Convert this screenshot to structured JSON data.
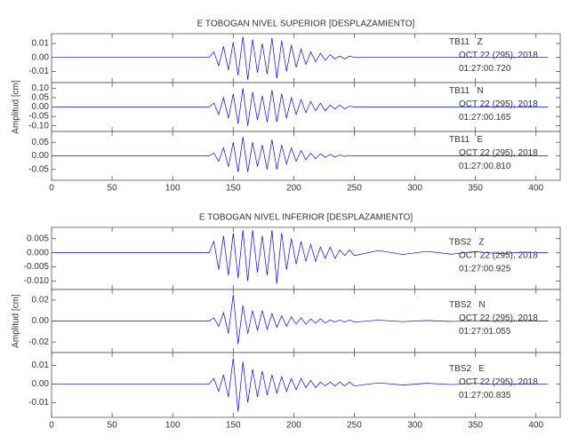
{
  "chart_data": [
    {
      "type": "line",
      "title": "E TOBOGAN NIVEL SUPERIOR [DESPLAZAMIENTO]",
      "station": "TB11   Z",
      "date": "OCT 22 (295), 2018",
      "time": "01:27:00.720",
      "xlim": [
        0,
        420
      ],
      "xticks": [
        0,
        50,
        100,
        150,
        200,
        250,
        300,
        350,
        400
      ],
      "show_xtick_labels": false,
      "ylim": [
        -0.018,
        0.017
      ],
      "yticks": [
        0.01,
        {
          "value": 0,
          "label": "0.00"
        },
        -0.01
      ],
      "color": "#0000ff",
      "x": [
        0,
        130,
        134,
        138,
        142,
        146,
        150,
        154,
        158,
        162,
        166,
        170,
        174,
        178,
        182,
        186,
        190,
        194,
        198,
        202,
        206,
        210,
        214,
        218,
        222,
        226,
        230,
        234,
        238,
        242,
        246,
        250,
        270,
        290,
        310,
        330,
        350,
        370,
        390,
        410
      ],
      "values": [
        0,
        0,
        0.004,
        -0.006,
        0.008,
        -0.009,
        0.011,
        -0.013,
        0.015,
        -0.016,
        0.013,
        -0.011,
        0.01,
        -0.012,
        0.014,
        -0.015,
        0.012,
        -0.01,
        0.009,
        -0.007,
        0.006,
        -0.005,
        0.004,
        -0.003,
        0.003,
        -0.002,
        0.002,
        -0.001,
        0.001,
        -0.001,
        0.001,
        0,
        0,
        0,
        0,
        0,
        0,
        0,
        0,
        0
      ]
    },
    {
      "type": "line",
      "ylabel": "Amplitud [cm]",
      "station": "TB11   N",
      "date": "OCT 22 (295), 2018",
      "time": "01:27:00.165",
      "xlim": [
        0,
        420
      ],
      "xticks": [
        0,
        50,
        100,
        150,
        200,
        250,
        300,
        350,
        400
      ],
      "show_xtick_labels": false,
      "ylim": [
        -0.13,
        0.13
      ],
      "yticks": [
        {
          "value": 0.1,
          "label": "0.10"
        },
        0.05,
        {
          "value": 0,
          "label": "0.00"
        },
        -0.05,
        {
          "value": -0.1,
          "label": "-0.10"
        }
      ],
      "color": "#0000ff",
      "x": [
        0,
        130,
        134,
        138,
        142,
        146,
        150,
        154,
        158,
        162,
        166,
        170,
        174,
        178,
        182,
        186,
        190,
        194,
        198,
        202,
        206,
        210,
        214,
        218,
        222,
        226,
        230,
        234,
        238,
        242,
        246,
        250,
        270,
        290,
        310,
        330,
        350,
        370,
        390,
        410
      ],
      "values": [
        0,
        0,
        0.02,
        -0.04,
        0.05,
        -0.06,
        0.07,
        -0.09,
        0.1,
        -0.1,
        0.08,
        -0.07,
        0.06,
        -0.08,
        0.09,
        -0.08,
        0.07,
        -0.06,
        0.05,
        -0.04,
        0.04,
        -0.03,
        0.03,
        -0.02,
        0.02,
        -0.02,
        0.01,
        -0.01,
        0.01,
        -0.01,
        0.005,
        0,
        0,
        0,
        0,
        0,
        0,
        0,
        0,
        0
      ]
    },
    {
      "type": "line",
      "station": "TB11   E",
      "date": "OCT 22 (295), 2018",
      "time": "01:27:00.810",
      "xlim": [
        0,
        420
      ],
      "xticks": [
        0,
        50,
        100,
        150,
        200,
        250,
        300,
        350,
        400
      ],
      "show_xtick_labels": true,
      "ylim": [
        -0.09,
        0.09
      ],
      "yticks": [
        0.05,
        {
          "value": 0,
          "label": "0.00"
        },
        -0.05
      ],
      "color": "#0000ff",
      "x": [
        0,
        130,
        134,
        138,
        142,
        146,
        150,
        154,
        158,
        162,
        166,
        170,
        174,
        178,
        182,
        186,
        190,
        194,
        198,
        202,
        206,
        210,
        214,
        218,
        222,
        226,
        230,
        234,
        238,
        242,
        246,
        250,
        270,
        290,
        310,
        330,
        350,
        370,
        390,
        410
      ],
      "values": [
        0,
        0,
        0.01,
        -0.02,
        0.03,
        -0.04,
        0.05,
        -0.06,
        0.07,
        -0.06,
        0.05,
        -0.04,
        0.04,
        -0.05,
        0.06,
        -0.05,
        0.04,
        -0.03,
        0.03,
        -0.02,
        0.02,
        -0.015,
        0.01,
        -0.01,
        0.008,
        -0.006,
        0.005,
        -0.004,
        0.003,
        -0.002,
        0.001,
        0,
        0,
        0,
        0,
        0,
        0,
        0,
        0,
        0
      ]
    },
    {
      "type": "line",
      "title": "E TOBOGAN NIVEL INFERIOR [DESPLAZAMIENTO]",
      "station": "TBS2   Z",
      "date": "OCT 22 (295), 2018",
      "time": "01:27:00.925",
      "xlim": [
        0,
        420
      ],
      "xticks": [
        0,
        50,
        100,
        150,
        200,
        250,
        300,
        350,
        400
      ],
      "show_xtick_labels": false,
      "ylim": [
        -0.013,
        0.009
      ],
      "yticks": [
        0.005,
        {
          "value": 0,
          "label": "0.000"
        },
        -0.005,
        {
          "value": -0.01,
          "label": "-0.010"
        }
      ],
      "color": "#0000ff",
      "x": [
        0,
        130,
        134,
        138,
        142,
        146,
        150,
        154,
        158,
        162,
        166,
        170,
        174,
        178,
        182,
        186,
        190,
        194,
        198,
        202,
        206,
        210,
        214,
        218,
        222,
        226,
        230,
        234,
        238,
        242,
        246,
        250,
        270,
        290,
        310,
        330,
        350,
        370,
        390,
        410
      ],
      "values": [
        0,
        0,
        0.004,
        -0.006,
        0.006,
        -0.008,
        0.007,
        -0.009,
        0.008,
        -0.01,
        0.008,
        -0.007,
        0.006,
        -0.008,
        0.008,
        -0.011,
        0.007,
        -0.006,
        0.005,
        -0.004,
        0.004,
        -0.003,
        0.003,
        -0.003,
        0.002,
        -0.002,
        0.002,
        -0.002,
        0.001,
        -0.001,
        0.001,
        -0.001,
        0.0008,
        -0.0006,
        0.0005,
        -0.0005,
        0.0004,
        -0.0003,
        0.0002,
        0
      ]
    },
    {
      "type": "line",
      "ylabel": "Amplitud [cm]",
      "station": "TBS2   N",
      "date": "OCT 22 (295), 2018",
      "time": "01:27:01.055",
      "xlim": [
        0,
        420
      ],
      "xticks": [
        0,
        50,
        100,
        150,
        200,
        250,
        300,
        350,
        400
      ],
      "show_xtick_labels": false,
      "ylim": [
        -0.03,
        0.03
      ],
      "yticks": [
        0.02,
        {
          "value": 0,
          "label": "0.00"
        },
        -0.02
      ],
      "color": "#0000ff",
      "x": [
        0,
        130,
        134,
        138,
        142,
        146,
        150,
        154,
        158,
        162,
        166,
        170,
        174,
        178,
        182,
        186,
        190,
        194,
        198,
        202,
        206,
        210,
        214,
        218,
        222,
        226,
        230,
        234,
        238,
        242,
        246,
        250,
        270,
        290,
        310,
        330,
        350,
        370,
        390,
        410
      ],
      "values": [
        0,
        0,
        0.003,
        -0.005,
        0.008,
        -0.012,
        0.025,
        -0.022,
        0.015,
        -0.012,
        0.01,
        -0.009,
        0.01,
        -0.008,
        0.007,
        -0.006,
        0.005,
        -0.005,
        0.004,
        -0.003,
        0.003,
        -0.003,
        0.002,
        -0.002,
        0.002,
        -0.002,
        0.001,
        -0.001,
        0.001,
        -0.001,
        0.001,
        -0.001,
        0.0008,
        -0.0006,
        0.0005,
        -0.0004,
        0.0003,
        -0.0003,
        0.0002,
        0
      ]
    },
    {
      "type": "line",
      "station": "TBS2   E",
      "date": "OCT 22 (295), 2018",
      "time": "01:27:00.835",
      "xlim": [
        0,
        420
      ],
      "xticks": [
        0,
        50,
        100,
        150,
        200,
        250,
        300,
        350,
        400
      ],
      "show_xtick_labels": true,
      "ylim": [
        -0.018,
        0.017
      ],
      "yticks": [
        0.01,
        {
          "value": 0,
          "label": "0.00"
        },
        -0.01
      ],
      "color": "#0000ff",
      "x": [
        0,
        130,
        134,
        138,
        142,
        146,
        150,
        154,
        158,
        162,
        166,
        170,
        174,
        178,
        182,
        186,
        190,
        194,
        198,
        202,
        206,
        210,
        214,
        218,
        222,
        226,
        230,
        234,
        238,
        242,
        246,
        250,
        270,
        290,
        310,
        330,
        350,
        370,
        390,
        410
      ],
      "values": [
        0,
        0,
        0.003,
        -0.004,
        0.005,
        -0.007,
        0.014,
        -0.015,
        0.012,
        -0.01,
        0.008,
        -0.007,
        0.007,
        -0.006,
        0.005,
        -0.005,
        0.004,
        -0.004,
        0.003,
        -0.003,
        0.003,
        -0.002,
        0.002,
        -0.002,
        0.001,
        -0.001,
        0.001,
        -0.001,
        0.001,
        -0.001,
        0.001,
        -0.001,
        0.0006,
        -0.0005,
        0.0004,
        -0.0003,
        0.0003,
        -0.0002,
        0.0001,
        0
      ]
    }
  ]
}
